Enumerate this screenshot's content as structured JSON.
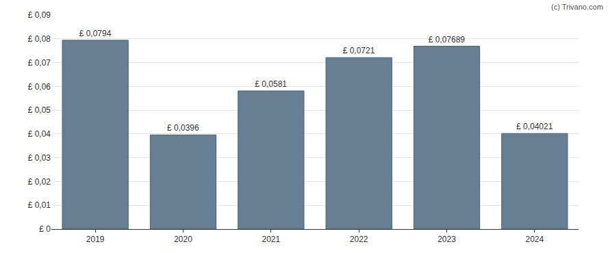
{
  "chart_data": {
    "type": "bar",
    "categories": [
      "2019",
      "2020",
      "2021",
      "2022",
      "2023",
      "2024"
    ],
    "values": [
      0.0794,
      0.0396,
      0.0581,
      0.0721,
      0.07689,
      0.04021
    ],
    "value_labels": [
      "£ 0,0794",
      "£ 0,0396",
      "£ 0,0581",
      "£ 0,0721",
      "£ 0,07689",
      "£ 0,04021"
    ],
    "data_labels": true,
    "color": "#667f93",
    "ylim": [
      0,
      0.09
    ],
    "yticks": [
      {
        "value": 0,
        "label": "£ 0"
      },
      {
        "value": 0.01,
        "label": "£ 0,01"
      },
      {
        "value": 0.02,
        "label": "£ 0,02"
      },
      {
        "value": 0.03,
        "label": "£ 0,03"
      },
      {
        "value": 0.04,
        "label": "£ 0,04"
      },
      {
        "value": 0.05,
        "label": "£ 0,05"
      },
      {
        "value": 0.06,
        "label": "£ 0,06"
      },
      {
        "value": 0.07,
        "label": "£ 0,07"
      },
      {
        "value": 0.08,
        "label": "£ 0,08"
      },
      {
        "value": 0.09,
        "label": "£ 0,09"
      }
    ],
    "grid": true,
    "annotations": [
      "(c) Trivano.com"
    ]
  }
}
